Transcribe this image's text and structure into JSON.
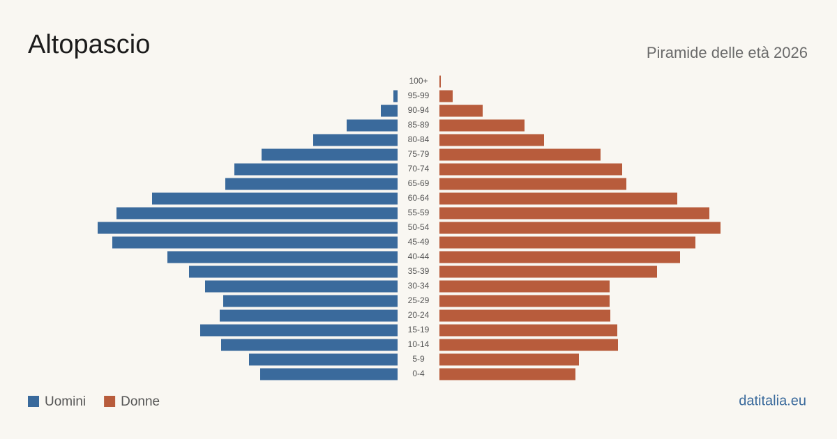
{
  "chart_data": {
    "type": "pyramid",
    "title": "Altopascio",
    "subtitle": "Piramide delle età 2026",
    "source": "datitalia.eu",
    "categories": [
      "100+",
      "95-99",
      "90-94",
      "85-89",
      "80-84",
      "75-79",
      "70-74",
      "65-69",
      "60-64",
      "55-59",
      "50-54",
      "45-49",
      "40-44",
      "35-39",
      "30-34",
      "25-29",
      "20-24",
      "15-19",
      "10-14",
      "5-9",
      "0-4"
    ],
    "series": [
      {
        "name": "Uomini",
        "color": "#3a6a9c",
        "values": [
          0,
          6,
          24,
          73,
          121,
          195,
          234,
          247,
          352,
          403,
          430,
          409,
          330,
          299,
          276,
          250,
          255,
          283,
          253,
          213,
          197
        ]
      },
      {
        "name": "Donne",
        "color": "#b85c3c",
        "values": [
          2,
          19,
          62,
          122,
          150,
          231,
          262,
          268,
          341,
          387,
          403,
          367,
          345,
          312,
          244,
          244,
          245,
          255,
          256,
          200,
          195
        ]
      }
    ]
  }
}
